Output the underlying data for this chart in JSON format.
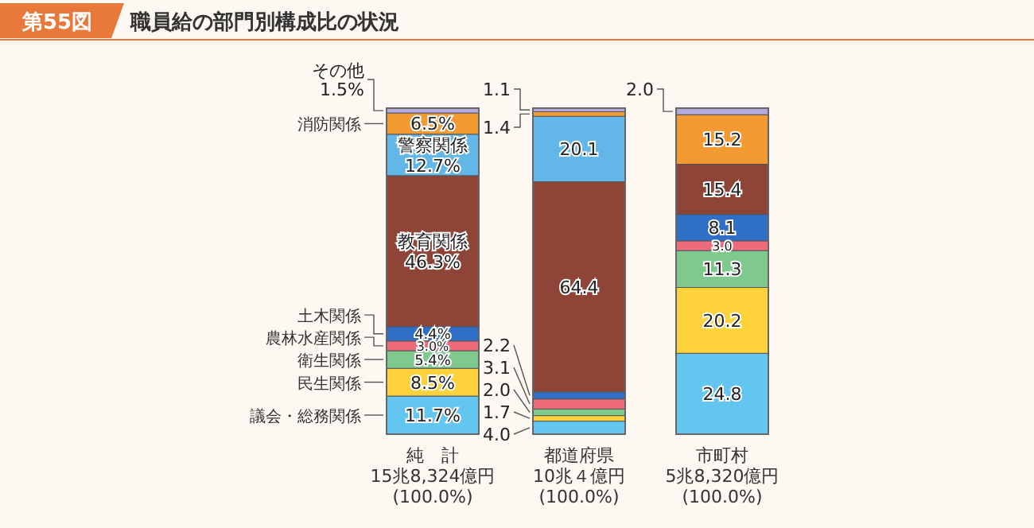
{
  "chart_data": {
    "type": "bar",
    "stacked": true,
    "title": "職員給の部門別構成比の状況",
    "annotations": [
      "第55図"
    ],
    "categories": [
      "純　計\n15兆8,324億円\n(100.0%)",
      "都道府県\n10兆４億円\n(100.0%)",
      "市町村\n5兆8,320億円\n(100.0%)"
    ],
    "ylim": [
      0,
      100
    ],
    "legend": "left",
    "series": [
      {
        "name": "議会・総務関係",
        "color": "#63c6f0",
        "values": [
          11.7,
          4.0,
          24.8
        ],
        "value_labels": [
          "11.7%",
          "4.0",
          "24.8"
        ]
      },
      {
        "name": "民生関係",
        "color": "#fdd23a",
        "values": [
          8.5,
          1.7,
          20.2
        ],
        "value_labels": [
          "8.5%",
          "1.7",
          "20.2"
        ]
      },
      {
        "name": "衛生関係",
        "color": "#80c98e",
        "values": [
          5.4,
          2.0,
          11.3
        ],
        "value_labels": [
          "5.4%",
          "2.0",
          "11.3"
        ]
      },
      {
        "name": "農林水産関係",
        "color": "#ee6b7b",
        "values": [
          3.0,
          3.1,
          3.0
        ],
        "value_labels": [
          "3.0%",
          "3.1",
          "3.0"
        ]
      },
      {
        "name": "土木関係",
        "color": "#2f6fc6",
        "values": [
          4.4,
          2.2,
          8.1
        ],
        "value_labels": [
          "4.4%",
          "2.2",
          "8.1"
        ]
      },
      {
        "color": "#8e4436",
        "values": [
          46.3,
          64.4,
          15.4
        ],
        "value_labels": [
          "教育関係\n46.3%",
          "64.4",
          "15.4"
        ]
      },
      {
        "color": "#62b6e8",
        "values": [
          12.7,
          20.1,
          null
        ],
        "value_labels": [
          "警察関係\n12.7%",
          "20.1",
          null
        ]
      },
      {
        "name": "消防関係",
        "color": "#f39a32",
        "values": [
          6.5,
          1.4,
          15.2
        ],
        "value_labels": [
          "6.5%",
          "1.4",
          "15.2"
        ]
      },
      {
        "color": "#b3a9dc",
        "values": [
          1.5,
          1.1,
          2.0
        ],
        "value_labels": [
          "その他\n1.5%",
          "1.1",
          "2.0"
        ]
      }
    ]
  }
}
